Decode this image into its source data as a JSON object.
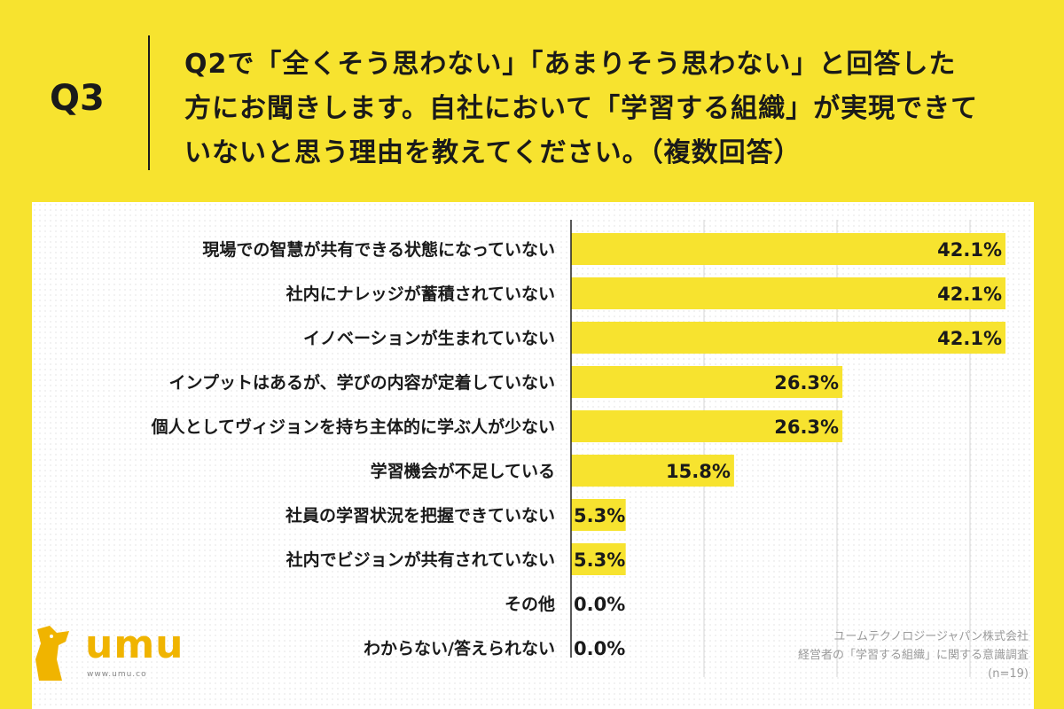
{
  "header": {
    "qnum": "Q3",
    "question_lines": [
      "Q2で「全くそう思わない」「あまりそう思わない」と回答した",
      "方にお聞きします。自社において「学習する組織」が実現できて",
      "いないと思う理由を教えてください。（複数回答）"
    ]
  },
  "chart_data": {
    "type": "bar",
    "orientation": "horizontal",
    "categories": [
      "現場での智慧が共有できる状態になっていない",
      "社内にナレッジが蓄積されていない",
      "イノベーションが生まれていない",
      "インプットはあるが、学びの内容が定着していない",
      "個人としてヴィジョンを持ち主体的に学ぶ人が少ない",
      "学習機会が不足している",
      "社員の学習状況を把握できていない",
      "社内でビジョンが共有されていない",
      "その他",
      "わからない/答えられない"
    ],
    "values": [
      42.1,
      42.1,
      42.1,
      26.3,
      26.3,
      15.8,
      5.3,
      5.3,
      0.0,
      0.0
    ],
    "data_labels": [
      "42.1%",
      "42.1%",
      "42.1%",
      "26.3%",
      "26.3%",
      "15.8%",
      "5.3%",
      "5.3%",
      "0.0%",
      "0.0%"
    ],
    "xlim": [
      0,
      42.1
    ],
    "grid": true,
    "bar_color": "#f7e32f"
  },
  "logo": {
    "name": "umu",
    "url": "www.umu.co"
  },
  "source": {
    "lines": [
      "ユームテクノロジージャパン株式会社",
      "経営者の「学習する組織」に関する意識調査",
      "(n=19)"
    ]
  },
  "colors": {
    "background": "#f7e32f",
    "panel": "#ffffff",
    "text": "#1a1a1a",
    "logo": "#f0b400"
  }
}
